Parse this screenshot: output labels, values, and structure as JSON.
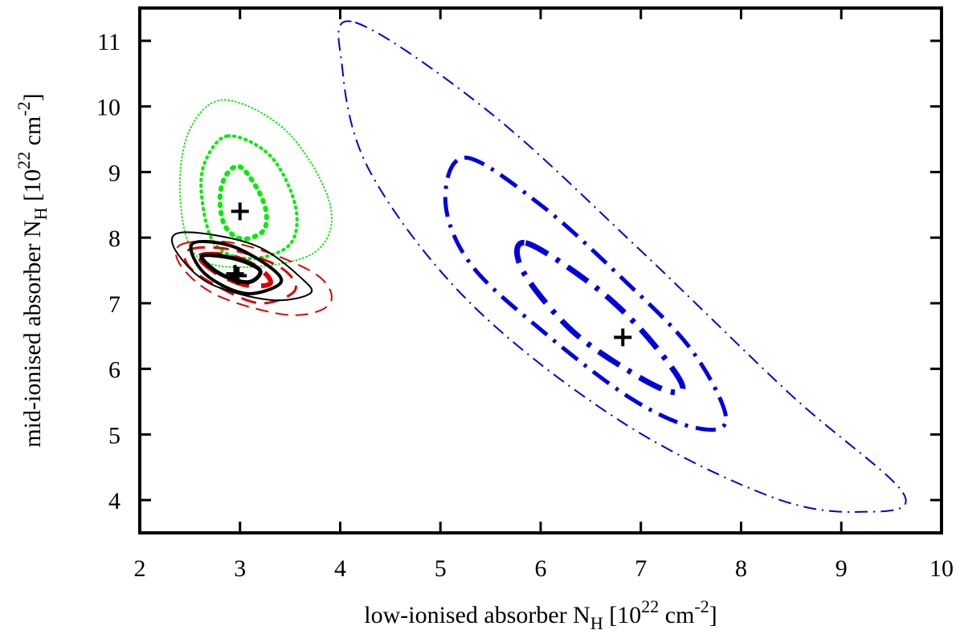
{
  "chart_data": {
    "type": "contour",
    "title": "",
    "xlabel": {
      "text": "low-ionised absorber N",
      "subscript": "H",
      "unit_prefix": " [10",
      "unit_exp": "22",
      "unit_mid": " cm",
      "unit_exp2": "-2",
      "unit_suffix": "]"
    },
    "ylabel": {
      "text": "mid-ionised absorber N",
      "subscript": "H",
      "unit_prefix": " [10",
      "unit_exp": "22",
      "unit_mid": " cm",
      "unit_exp2": "-2",
      "unit_suffix": "]"
    },
    "xlim": [
      2,
      10
    ],
    "ylim": [
      3.5,
      11.5
    ],
    "xticks": [
      "2",
      "3",
      "4",
      "5",
      "6",
      "7",
      "8",
      "9",
      "10"
    ],
    "yticks": [
      "4",
      "5",
      "6",
      "7",
      "8",
      "9",
      "10",
      "11"
    ],
    "grid": false,
    "legend": "none",
    "series": [
      {
        "color": "#00ee00",
        "dash": "dotted",
        "best_fit": [
          3.0,
          8.4
        ],
        "contours": [
          {
            "level": 1,
            "width": 6,
            "points": [
              [
                3.0,
                9.08
              ],
              [
                3.17,
                8.75
              ],
              [
                3.26,
                8.4
              ],
              [
                3.23,
                8.1
              ],
              [
                3.02,
                7.98
              ],
              [
                2.85,
                8.18
              ],
              [
                2.8,
                8.6
              ],
              [
                2.86,
                8.95
              ]
            ]
          },
          {
            "level": 2,
            "width": 4,
            "points": [
              [
                2.88,
                9.55
              ],
              [
                3.3,
                9.25
              ],
              [
                3.55,
                8.5
              ],
              [
                3.5,
                7.9
              ],
              [
                3.1,
                7.68
              ],
              [
                2.75,
                7.9
              ],
              [
                2.62,
                8.6
              ],
              [
                2.65,
                9.15
              ]
            ]
          },
          {
            "level": 3,
            "width": 2,
            "points": [
              [
                2.85,
                10.1
              ],
              [
                3.48,
                9.6
              ],
              [
                3.9,
                8.5
              ],
              [
                3.75,
                7.78
              ],
              [
                3.05,
                7.55
              ],
              [
                2.55,
                7.75
              ],
              [
                2.4,
                8.7
              ],
              [
                2.5,
                9.65
              ]
            ]
          }
        ]
      },
      {
        "color": "#dd0000",
        "dash": "dashed",
        "best_fit": [
          2.98,
          7.42
        ],
        "contours": [
          {
            "level": 1,
            "width": 6,
            "points": [
              [
                2.6,
                7.72
              ],
              [
                2.9,
                7.72
              ],
              [
                3.2,
                7.52
              ],
              [
                3.3,
                7.3
              ],
              [
                3.05,
                7.28
              ],
              [
                2.75,
                7.48
              ]
            ]
          },
          {
            "level": 2,
            "width": 3,
            "points": [
              [
                2.5,
                7.82
              ],
              [
                2.9,
                7.82
              ],
              [
                3.4,
                7.55
              ],
              [
                3.55,
                7.2
              ],
              [
                3.2,
                7.0
              ],
              [
                2.75,
                7.28
              ],
              [
                2.48,
                7.58
              ]
            ]
          },
          {
            "level": 3,
            "width": 2,
            "points": [
              [
                2.42,
                7.9
              ],
              [
                3.0,
                7.9
              ],
              [
                3.75,
                7.45
              ],
              [
                3.9,
                7.0
              ],
              [
                3.5,
                6.82
              ],
              [
                2.8,
                7.1
              ],
              [
                2.42,
                7.55
              ]
            ]
          }
        ]
      },
      {
        "color": "#000000",
        "dash": "solid",
        "best_fit": [
          2.95,
          7.45
        ],
        "contours": [
          {
            "level": 1,
            "width": 5,
            "points": [
              [
                2.62,
                7.72
              ],
              [
                2.95,
                7.68
              ],
              [
                3.2,
                7.5
              ],
              [
                3.08,
                7.32
              ],
              [
                2.8,
                7.45
              ]
            ]
          },
          {
            "level": 2,
            "width": 4,
            "points": [
              [
                2.52,
                7.9
              ],
              [
                2.9,
                7.88
              ],
              [
                3.3,
                7.55
              ],
              [
                3.4,
                7.3
              ],
              [
                3.05,
                7.15
              ],
              [
                2.65,
                7.45
              ]
            ]
          },
          {
            "level": 3,
            "width": 2,
            "points": [
              [
                2.35,
                8.05
              ],
              [
                2.7,
                8.05
              ],
              [
                3.2,
                7.85
              ],
              [
                3.6,
                7.4
              ],
              [
                3.7,
                7.15
              ],
              [
                3.3,
                7.05
              ],
              [
                2.7,
                7.3
              ],
              [
                2.38,
                7.75
              ]
            ]
          }
        ]
      },
      {
        "color": "#0000dd",
        "dash": "dashdot",
        "best_fit": [
          6.82,
          6.48
        ],
        "contours": [
          {
            "level": 1,
            "width": 7,
            "points": [
              [
                5.85,
                7.92
              ],
              [
                6.5,
                7.3
              ],
              [
                7.0,
                6.6
              ],
              [
                7.4,
                5.8
              ],
              [
                7.3,
                5.65
              ],
              [
                6.9,
                5.95
              ],
              [
                6.3,
                6.6
              ],
              [
                5.82,
                7.5
              ]
            ]
          },
          {
            "level": 2,
            "width": 5,
            "points": [
              [
                5.25,
                9.22
              ],
              [
                6.0,
                8.5
              ],
              [
                6.8,
                7.4
              ],
              [
                7.5,
                6.3
              ],
              [
                7.85,
                5.25
              ],
              [
                7.55,
                5.1
              ],
              [
                6.9,
                5.55
              ],
              [
                6.0,
                6.6
              ],
              [
                5.3,
                7.6
              ],
              [
                5.05,
                8.55
              ]
            ]
          },
          {
            "level": 3,
            "width": 2,
            "points": [
              [
                4.15,
                11.28
              ],
              [
                5.5,
                9.9
              ],
              [
                7.0,
                7.8
              ],
              [
                8.5,
                5.6
              ],
              [
                9.62,
                4.1
              ],
              [
                9.2,
                3.82
              ],
              [
                8.3,
                4.05
              ],
              [
                6.8,
                5.2
              ],
              [
                5.3,
                7.0
              ],
              [
                4.3,
                9.0
              ],
              [
                4.02,
                10.6
              ]
            ]
          }
        ]
      }
    ]
  }
}
